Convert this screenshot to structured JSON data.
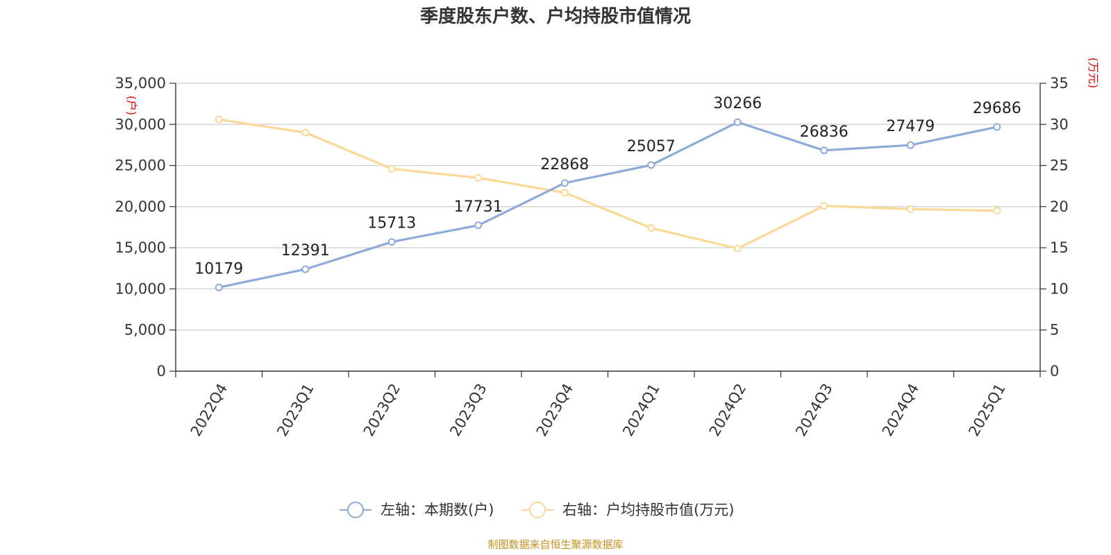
{
  "chart_data": {
    "type": "line",
    "title": "季度股东户数、户均持股市值情况",
    "categories": [
      "2022Q4",
      "2023Q1",
      "2023Q2",
      "2023Q3",
      "2023Q4",
      "2024Q1",
      "2024Q2",
      "2024Q3",
      "2024Q4",
      "2025Q1"
    ],
    "series": [
      {
        "name": "左轴：本期数(户)",
        "axis": "left",
        "color": "#8eaad8",
        "values": [
          10179,
          12391,
          15713,
          17731,
          22868,
          25057,
          30266,
          26836,
          27479,
          29686
        ],
        "labels": [
          "10179",
          "12391",
          "15713",
          "17731",
          "22868",
          "25057",
          "30266",
          "26836",
          "27479",
          "29686"
        ]
      },
      {
        "name": "右轴：户均持股市值(万元)",
        "axis": "right",
        "color": "#fcd896",
        "values": [
          30.6,
          29.0,
          24.6,
          23.5,
          21.7,
          17.4,
          14.9,
          20.1,
          19.7,
          19.5
        ]
      }
    ],
    "left_axis": {
      "unit": "(户)",
      "ylim": [
        0,
        35000
      ],
      "ticks": [
        0,
        5000,
        10000,
        15000,
        20000,
        25000,
        30000,
        35000
      ],
      "tick_labels": [
        "0",
        "5,000",
        "10,000",
        "15,000",
        "20,000",
        "25,000",
        "30,000",
        "35,000"
      ]
    },
    "right_axis": {
      "unit": "(万元)",
      "ylim": [
        0,
        35
      ],
      "ticks": [
        0,
        5,
        10,
        15,
        20,
        25,
        30,
        35
      ],
      "tick_labels": [
        "0",
        "5",
        "10",
        "15",
        "20",
        "25",
        "30",
        "35"
      ]
    },
    "grid": true,
    "legend_position": "bottom-center"
  },
  "source_text": "制图数据来自恒生聚源数据库"
}
